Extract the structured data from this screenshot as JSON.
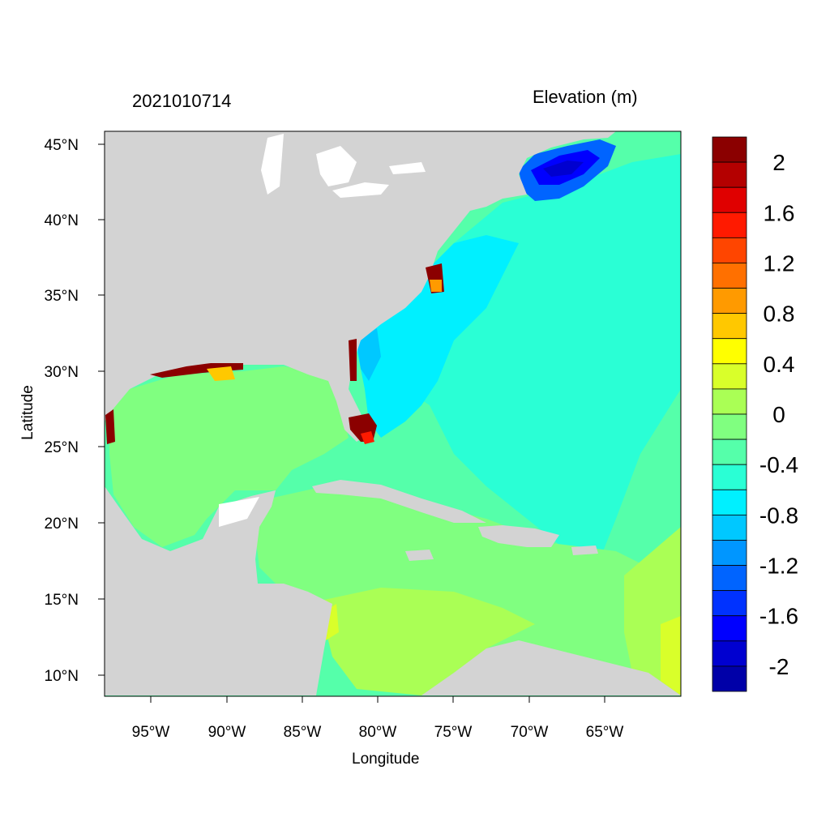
{
  "titles": {
    "left": "2021010714",
    "right": "Elevation (m)"
  },
  "axes": {
    "xlabel": "Longitude",
    "ylabel": "Latitude",
    "xticks": [
      "95°W",
      "90°W",
      "85°W",
      "80°W",
      "75°W",
      "70°W",
      "65°W"
    ],
    "yticks": [
      "45°N",
      "40°N",
      "35°N",
      "30°N",
      "25°N",
      "20°N",
      "15°N",
      "10°N"
    ]
  },
  "colorbar": {
    "labels": [
      "2",
      "1.6",
      "1.2",
      "0.8",
      "0.4",
      "0",
      "-0.4",
      "-0.8",
      "-1.2",
      "-1.6",
      "-2"
    ],
    "colors": [
      "#8b0000",
      "#b40000",
      "#e00000",
      "#ff1a00",
      "#ff4500",
      "#ff7000",
      "#ff9a00",
      "#ffc800",
      "#ffff00",
      "#d9ff2a",
      "#aaff55",
      "#80ff80",
      "#55ffaa",
      "#2affd5",
      "#00f0ff",
      "#00c8ff",
      "#0096ff",
      "#0064ff",
      "#0032ff",
      "#0000ff",
      "#0000d0",
      "#0000a8"
    ]
  },
  "map": {
    "land_color": "#d3d3d3",
    "ocean_base_color": "#55ffaa"
  }
}
